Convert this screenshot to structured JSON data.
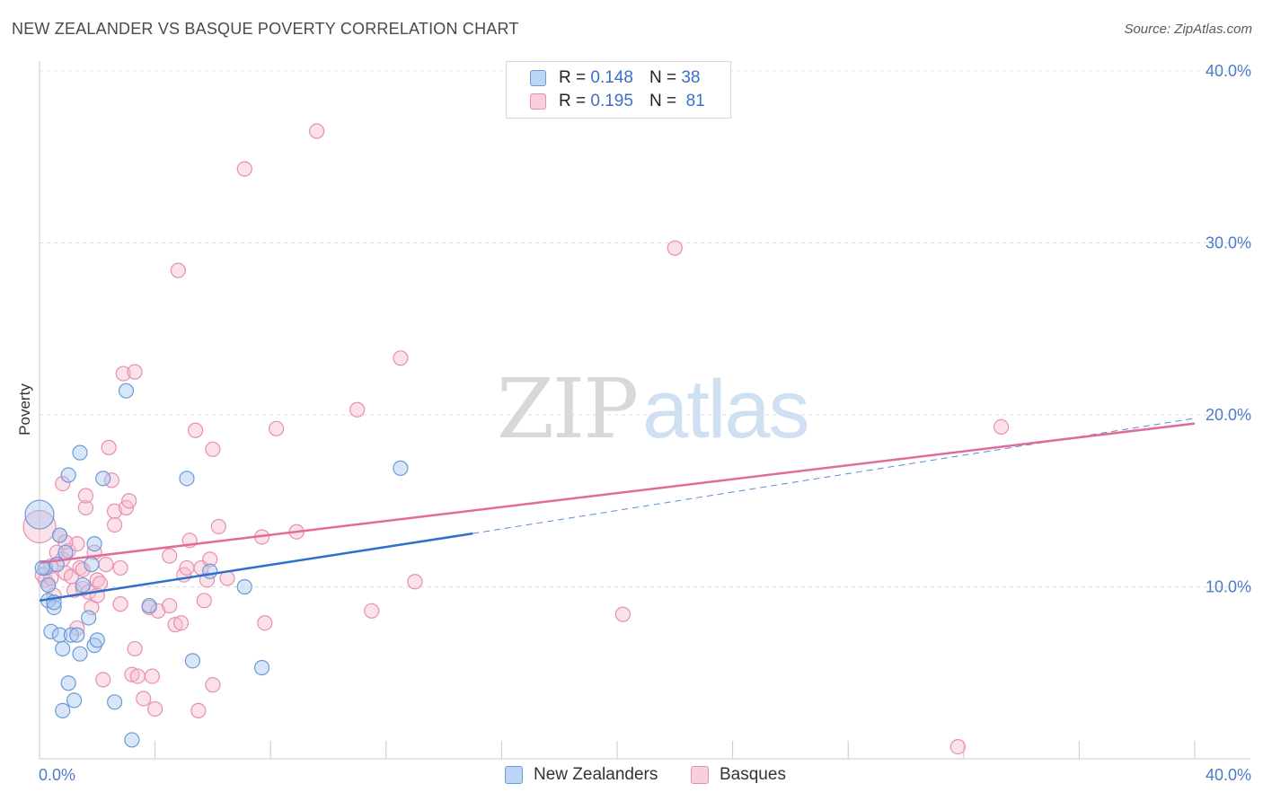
{
  "header": {
    "title": "NEW ZEALANDER VS BASQUE POVERTY CORRELATION CHART",
    "source": "Source: ZipAtlas.com"
  },
  "watermark": {
    "zip": "ZIP",
    "atlas": "atlas"
  },
  "legend": {
    "rows": [
      {
        "r_label": "R =",
        "r_value": "0.148",
        "n_label": "N =",
        "n_value": "38"
      },
      {
        "r_label": "R =",
        "r_value": "0.195",
        "n_label": "N =",
        "n_value": "81"
      }
    ]
  },
  "bottom_legend": {
    "items": [
      {
        "label": "New Zealanders"
      },
      {
        "label": "Basques"
      }
    ]
  },
  "colors": {
    "nz_fill": "#a9c8f0",
    "nz_stroke": "#6a9bd8",
    "nz_line": "#2f6fcc",
    "basque_fill": "#f6bdd0",
    "basque_stroke": "#e88fac",
    "basque_line": "#e06c96",
    "tick_text": "#4a7cc9"
  },
  "chart_data": {
    "type": "scatter",
    "title": "NEW ZEALANDER VS BASQUE POVERTY CORRELATION CHART",
    "xlabel": "",
    "ylabel": "Poverty",
    "xlim": [
      0,
      40
    ],
    "ylim": [
      0,
      40
    ],
    "x_tick_labels": [
      "0.0%",
      "40.0%"
    ],
    "y_ticks": [
      10,
      20,
      30,
      40
    ],
    "y_tick_labels": [
      "10.0%",
      "20.0%",
      "30.0%",
      "40.0%"
    ],
    "grid": true,
    "series": [
      {
        "name": "New Zealanders",
        "r": 0.148,
        "n": 38,
        "trend": {
          "x0": 0,
          "y0": 9.2,
          "x1": 15.0,
          "y1": 13.1,
          "dashed_to_x": 40.0,
          "dashed_to_y": 19.8
        },
        "points": [
          [
            0.0,
            14.2
          ],
          [
            0.2,
            11.1
          ],
          [
            0.3,
            10.1
          ],
          [
            0.3,
            9.2
          ],
          [
            0.4,
            7.4
          ],
          [
            0.5,
            8.8
          ],
          [
            0.5,
            9.1
          ],
          [
            0.6,
            11.3
          ],
          [
            0.7,
            7.2
          ],
          [
            0.7,
            13.0
          ],
          [
            0.8,
            6.4
          ],
          [
            0.8,
            2.8
          ],
          [
            0.9,
            12.0
          ],
          [
            1.0,
            4.4
          ],
          [
            1.1,
            7.2
          ],
          [
            1.0,
            16.5
          ],
          [
            1.2,
            3.4
          ],
          [
            1.3,
            7.2
          ],
          [
            1.4,
            6.1
          ],
          [
            1.4,
            17.8
          ],
          [
            1.5,
            10.1
          ],
          [
            1.7,
            8.2
          ],
          [
            1.8,
            11.3
          ],
          [
            1.9,
            6.6
          ],
          [
            1.9,
            12.5
          ],
          [
            2.0,
            6.9
          ],
          [
            2.2,
            16.3
          ],
          [
            2.6,
            3.3
          ],
          [
            3.0,
            21.4
          ],
          [
            3.2,
            1.1
          ],
          [
            3.8,
            8.9
          ],
          [
            5.1,
            16.3
          ],
          [
            5.3,
            5.7
          ],
          [
            5.9,
            10.9
          ],
          [
            7.1,
            10.0
          ],
          [
            7.7,
            5.3
          ],
          [
            12.5,
            16.9
          ],
          [
            0.1,
            11.1
          ]
        ]
      },
      {
        "name": "Basques",
        "r": 0.195,
        "n": 81,
        "trend": {
          "x0": 0,
          "y0": 11.4,
          "x1": 40.0,
          "y1": 19.5
        },
        "points": [
          [
            0.0,
            13.5
          ],
          [
            0.2,
            10.4
          ],
          [
            0.3,
            10.1
          ],
          [
            0.4,
            11.2
          ],
          [
            0.5,
            9.5
          ],
          [
            0.6,
            12.0
          ],
          [
            0.7,
            13.0
          ],
          [
            0.8,
            11.6
          ],
          [
            0.8,
            16.0
          ],
          [
            0.9,
            10.8
          ],
          [
            1.0,
            12.1
          ],
          [
            1.1,
            10.6
          ],
          [
            1.2,
            9.8
          ],
          [
            1.3,
            12.5
          ],
          [
            1.3,
            7.6
          ],
          [
            1.4,
            11.1
          ],
          [
            1.5,
            9.9
          ],
          [
            1.6,
            14.6
          ],
          [
            1.6,
            15.3
          ],
          [
            1.7,
            9.7
          ],
          [
            1.8,
            8.8
          ],
          [
            1.9,
            12.0
          ],
          [
            2.0,
            10.4
          ],
          [
            2.1,
            10.2
          ],
          [
            2.2,
            4.6
          ],
          [
            2.3,
            11.3
          ],
          [
            2.4,
            18.1
          ],
          [
            2.5,
            16.2
          ],
          [
            2.6,
            14.4
          ],
          [
            2.6,
            13.6
          ],
          [
            2.8,
            9.0
          ],
          [
            2.8,
            11.1
          ],
          [
            2.9,
            22.4
          ],
          [
            3.0,
            14.6
          ],
          [
            3.1,
            15.0
          ],
          [
            3.2,
            4.9
          ],
          [
            3.3,
            6.4
          ],
          [
            3.3,
            22.5
          ],
          [
            3.4,
            4.8
          ],
          [
            3.6,
            3.5
          ],
          [
            3.8,
            8.8
          ],
          [
            3.9,
            4.8
          ],
          [
            4.0,
            2.9
          ],
          [
            4.1,
            8.6
          ],
          [
            4.5,
            11.8
          ],
          [
            4.7,
            7.8
          ],
          [
            4.8,
            28.4
          ],
          [
            4.9,
            7.9
          ],
          [
            5.0,
            10.7
          ],
          [
            5.1,
            11.1
          ],
          [
            5.2,
            12.7
          ],
          [
            5.4,
            19.1
          ],
          [
            5.5,
            2.8
          ],
          [
            5.6,
            11.1
          ],
          [
            5.7,
            9.2
          ],
          [
            5.8,
            10.4
          ],
          [
            5.9,
            11.6
          ],
          [
            6.0,
            4.3
          ],
          [
            6.0,
            18.0
          ],
          [
            6.2,
            13.5
          ],
          [
            6.5,
            10.5
          ],
          [
            7.1,
            34.3
          ],
          [
            7.7,
            12.9
          ],
          [
            7.8,
            7.9
          ],
          [
            8.2,
            19.2
          ],
          [
            8.9,
            13.2
          ],
          [
            9.6,
            36.5
          ],
          [
            11.0,
            20.3
          ],
          [
            11.5,
            8.6
          ],
          [
            12.5,
            23.3
          ],
          [
            13.0,
            10.3
          ],
          [
            20.2,
            8.4
          ],
          [
            22.0,
            29.7
          ],
          [
            31.8,
            0.7
          ],
          [
            33.3,
            19.3
          ],
          [
            0.1,
            10.7
          ],
          [
            0.4,
            10.5
          ],
          [
            1.5,
            11.0
          ],
          [
            2.0,
            9.5
          ],
          [
            0.9,
            12.6
          ],
          [
            4.5,
            8.9
          ]
        ]
      }
    ]
  }
}
